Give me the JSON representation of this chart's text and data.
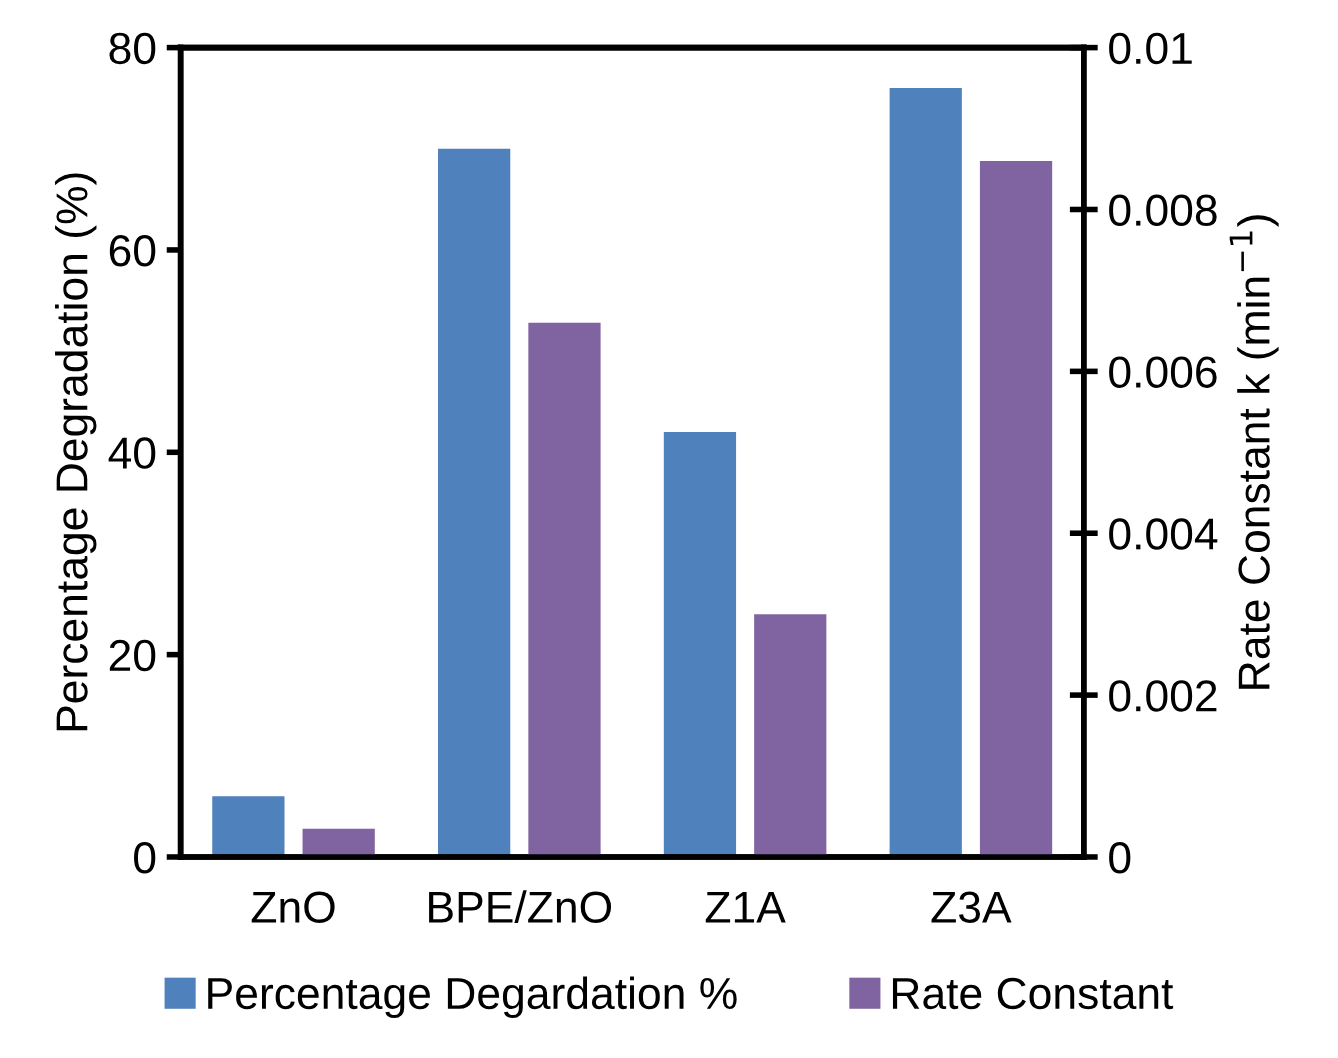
{
  "chart_data": {
    "type": "bar",
    "categories": [
      "ZnO",
      "BPE/ZnO",
      "Z1A",
      "Z3A"
    ],
    "ylabel": "Percentage Degradation (%)",
    "y2label": "Rate Constant k (min$^{−1}$)",
    "ylim": [
      0,
      80
    ],
    "yticks": [
      0,
      20,
      40,
      60,
      80
    ],
    "y2lim": [
      0,
      0.01
    ],
    "y2ticks": [
      0,
      0.002,
      0.004,
      0.006,
      0.008,
      0.01
    ],
    "series": [
      {
        "name": "Percentage Degardation %",
        "color": "#4f81bd",
        "values": [
          6,
          70,
          42,
          76
        ]
      },
      {
        "name": "Rate Constant",
        "color": "#8064a2",
        "values": [
          0.00035,
          0.0066,
          0.003,
          0.0086
        ],
        "axis": "y2"
      }
    ],
    "grid": false,
    "legend": "bottom"
  }
}
